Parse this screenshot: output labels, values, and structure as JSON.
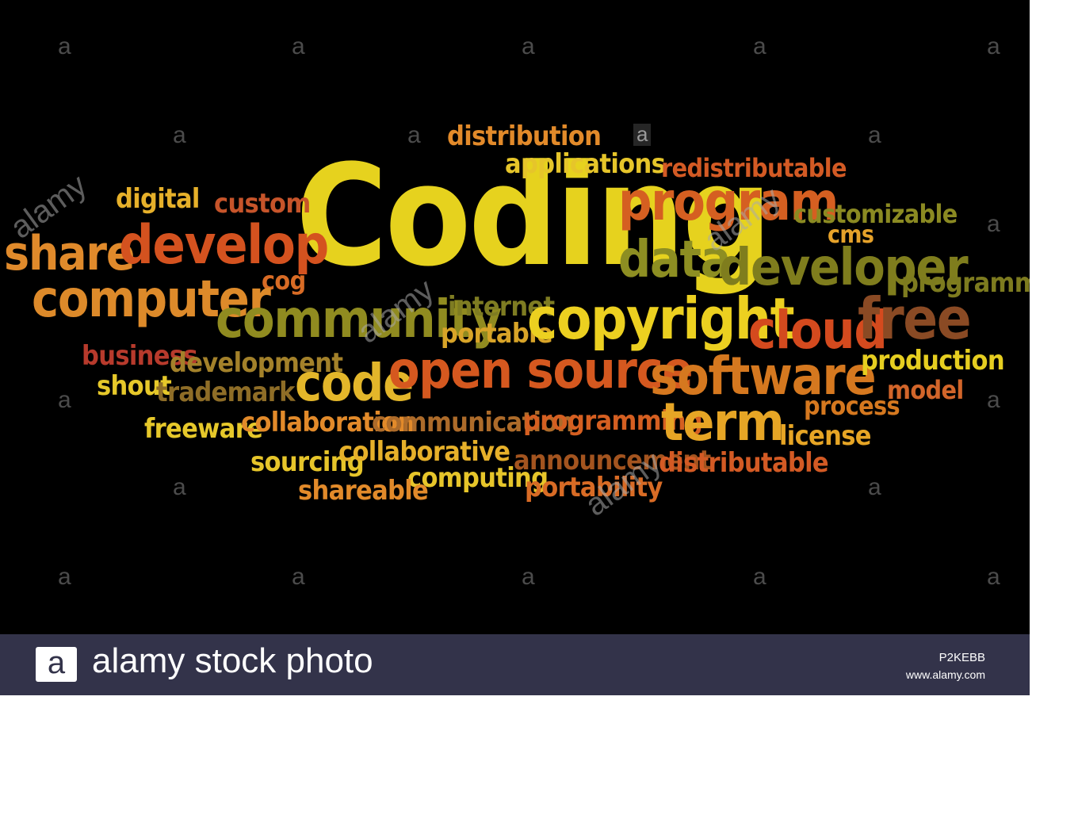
{
  "word_cloud": {
    "words": [
      {
        "text": "Coding",
        "color": "#e6d21e"
      },
      {
        "text": "distribution",
        "color": "#e28a2a"
      },
      {
        "text": "applications",
        "color": "#e6c52a"
      },
      {
        "text": "redistributable",
        "color": "#d35a24"
      },
      {
        "text": "program",
        "color": "#d55f21"
      },
      {
        "text": "customizable",
        "color": "#8b8a22"
      },
      {
        "text": "cms",
        "color": "#e6a22a"
      },
      {
        "text": "digital",
        "color": "#e6b02a"
      },
      {
        "text": "custom",
        "color": "#c6542a"
      },
      {
        "text": "share",
        "color": "#e08a2b"
      },
      {
        "text": "develop",
        "color": "#d4521f"
      },
      {
        "text": "cog",
        "color": "#d86b25"
      },
      {
        "text": "data",
        "color": "#8d8e22"
      },
      {
        "text": "developer",
        "color": "#7f7d1d"
      },
      {
        "text": "programmer",
        "color": "#7d7b1f"
      },
      {
        "text": "computer",
        "color": "#dd8a2a"
      },
      {
        "text": "community",
        "color": "#908b20"
      },
      {
        "text": "internet",
        "color": "#7e7c22"
      },
      {
        "text": "portable",
        "color": "#d8a428"
      },
      {
        "text": "copyright",
        "color": "#ecd020"
      },
      {
        "text": "cloud",
        "color": "#d44a1e"
      },
      {
        "text": "free",
        "color": "#8a4a24"
      },
      {
        "text": "business",
        "color": "#b73a2c"
      },
      {
        "text": "development",
        "color": "#a3812a"
      },
      {
        "text": "code",
        "color": "#e3b62a"
      },
      {
        "text": "open source",
        "color": "#d5581f"
      },
      {
        "text": "software",
        "color": "#d5781f"
      },
      {
        "text": "production",
        "color": "#e6ce20"
      },
      {
        "text": "shout",
        "color": "#e6c82a"
      },
      {
        "text": "trademark",
        "color": "#8e6d27"
      },
      {
        "text": "model",
        "color": "#d2652a"
      },
      {
        "text": "process",
        "color": "#d5781f"
      },
      {
        "text": "freeware",
        "color": "#e6c82a"
      },
      {
        "text": "collaboration",
        "color": "#e28a2a"
      },
      {
        "text": "communication",
        "color": "#ad6b2a"
      },
      {
        "text": "programming",
        "color": "#d55f21"
      },
      {
        "text": "term",
        "color": "#e6a525"
      },
      {
        "text": "license",
        "color": "#e6a525"
      },
      {
        "text": "sourcing",
        "color": "#e6c52a"
      },
      {
        "text": "collaborative",
        "color": "#e6b02a"
      },
      {
        "text": "announcement",
        "color": "#a3541f"
      },
      {
        "text": "distributable",
        "color": "#d35a24"
      },
      {
        "text": "computing",
        "color": "#e6c52a"
      },
      {
        "text": "shareable",
        "color": "#e28a2a"
      },
      {
        "text": "portability",
        "color": "#d86b25"
      }
    ]
  },
  "watermark": {
    "glyph": "a",
    "diagonal_text": "alamy"
  },
  "footer": {
    "logo_glyph": "a",
    "brand_text": "alamy stock photo",
    "image_code": "P2KEBB",
    "site": "www.alamy.com"
  }
}
